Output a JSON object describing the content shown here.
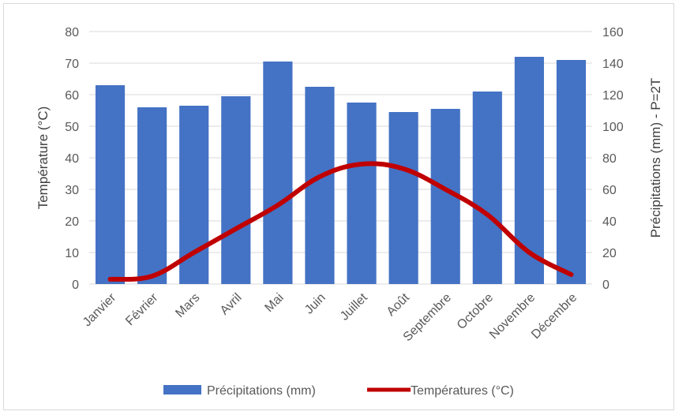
{
  "chart_data": {
    "type": "bar",
    "categories": [
      "Janvier",
      "Février",
      "Mars",
      "Avril",
      "Mai",
      "Juin",
      "Juillet",
      "Août",
      "Septembre",
      "Octobre",
      "Novembre",
      "Décembre"
    ],
    "series": [
      {
        "name": "Précipitations (mm)",
        "type": "bar",
        "axis": "right",
        "color": "#4472C4",
        "values": [
          126,
          112,
          113,
          119,
          141,
          125,
          115,
          109,
          111,
          122,
          144,
          142
        ]
      },
      {
        "name": "Températures (°C)",
        "type": "line",
        "axis": "left",
        "color": "#C00000",
        "values": [
          1.5,
          2.5,
          10,
          17.5,
          25,
          34,
          38,
          36.5,
          30,
          22,
          10,
          3
        ]
      }
    ],
    "ylabel_left": "Température (°C)",
    "ylabel_right": "Précipitations (mm) - P=2T",
    "ylim_left": [
      0,
      80
    ],
    "ylim_right": [
      0,
      160
    ],
    "yticks_left": [
      "0",
      "10",
      "20",
      "30",
      "40",
      "50",
      "60",
      "70",
      "80"
    ],
    "yticks_right": [
      "0",
      "20",
      "40",
      "60",
      "80",
      "100",
      "120",
      "140",
      "160"
    ],
    "grid": true,
    "legend_position": "bottom"
  }
}
